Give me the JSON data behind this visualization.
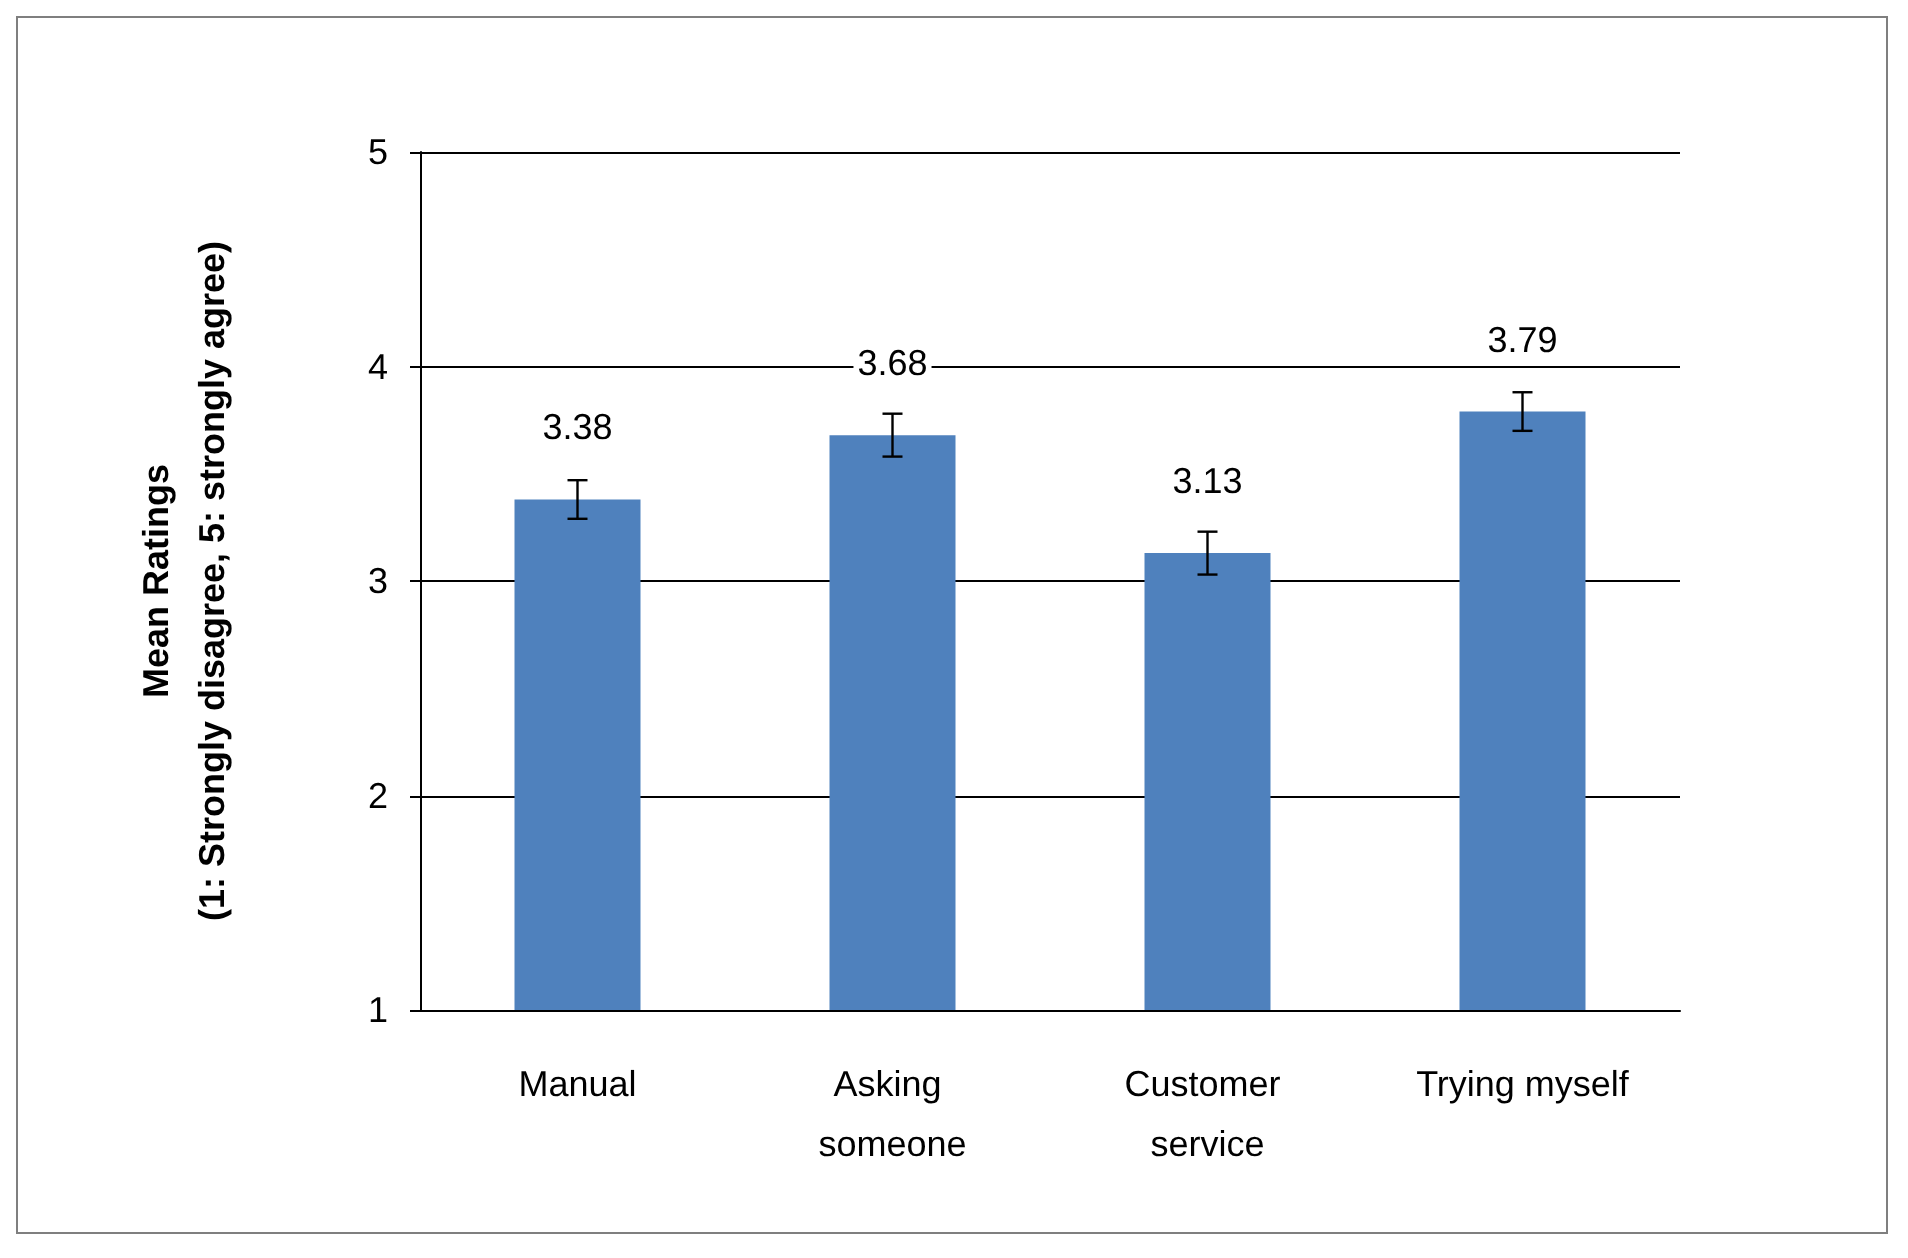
{
  "chart_data": {
    "type": "bar",
    "ylabel": "Mean Ratings\n(1: Strongly disagree, 5: strongly agree)",
    "categories": [
      "Manual",
      "Asking someone",
      "Customer service",
      "Trying myself"
    ],
    "values": [
      3.38,
      3.68,
      3.13,
      3.79
    ],
    "color": "#4f81bd",
    "errors": [
      0.09,
      0.1,
      0.1,
      0.09
    ],
    "ylim": [
      1,
      5
    ],
    "yticks": [
      1,
      2,
      3,
      4,
      5
    ],
    "grid": "y",
    "data_labels": true
  }
}
